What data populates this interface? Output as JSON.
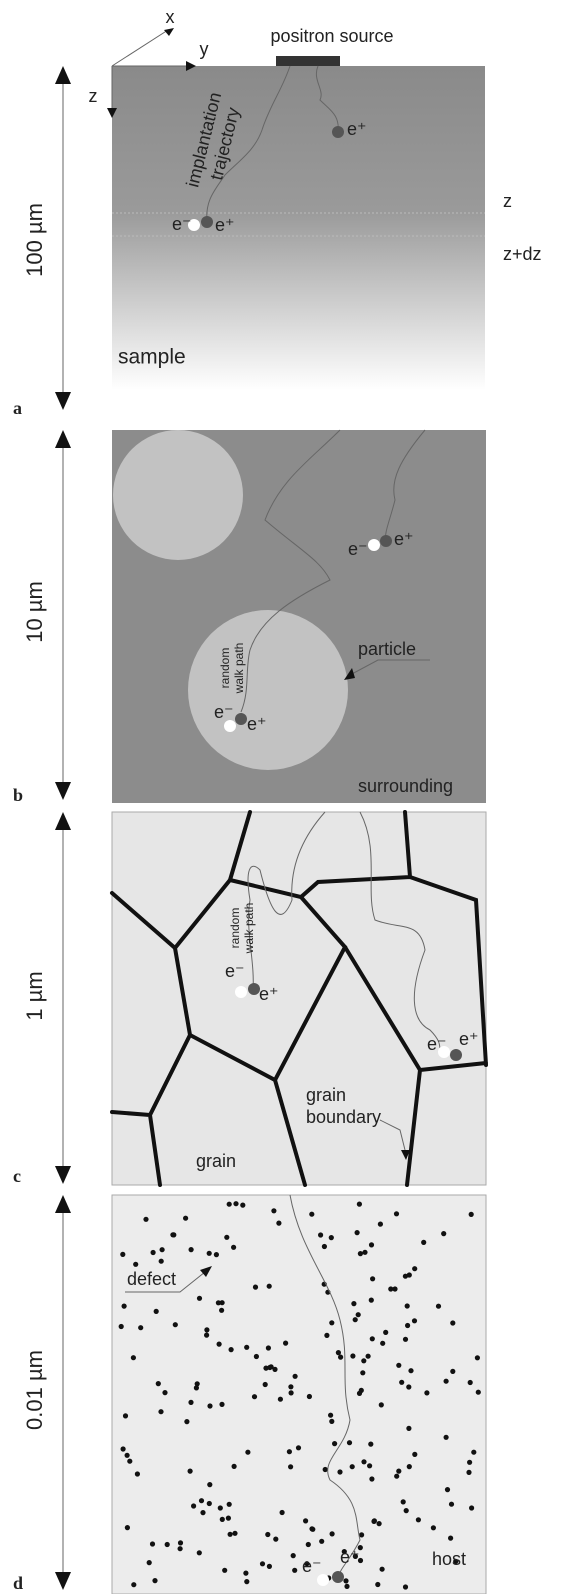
{
  "panel_a": {
    "letter": "a",
    "scale": "100 µm",
    "axis_x": "x",
    "axis_y": "y",
    "axis_z": "z",
    "source": "positron source",
    "trajectory": [
      "implantation",
      "trajectory"
    ],
    "electron": "e⁻",
    "positron": "e⁺",
    "positron_2": "e⁺",
    "depth_z": "z",
    "depth_dz": "z+dz",
    "material": "sample"
  },
  "panel_b": {
    "letter": "b",
    "scale": "10 µm",
    "particle": "particle",
    "walk": [
      "random",
      "walk path"
    ],
    "electron": "e⁻",
    "positron": "e⁺",
    "electron_2": "e⁻",
    "positron_2": "e⁺",
    "surrounding": "surrounding"
  },
  "panel_c": {
    "letter": "c",
    "scale": "1 µm",
    "walk": [
      "random",
      "walk path"
    ],
    "electron": "e⁻",
    "positron": "e⁺",
    "electron_2": "e⁻",
    "positron_2": "e⁺",
    "boundary": [
      "grain",
      "boundary"
    ],
    "grain": "grain"
  },
  "panel_d": {
    "letter": "d",
    "scale": "0.01 µm",
    "defect": "defect",
    "electron": "e⁻",
    "positron": "e⁺",
    "host": "host"
  }
}
